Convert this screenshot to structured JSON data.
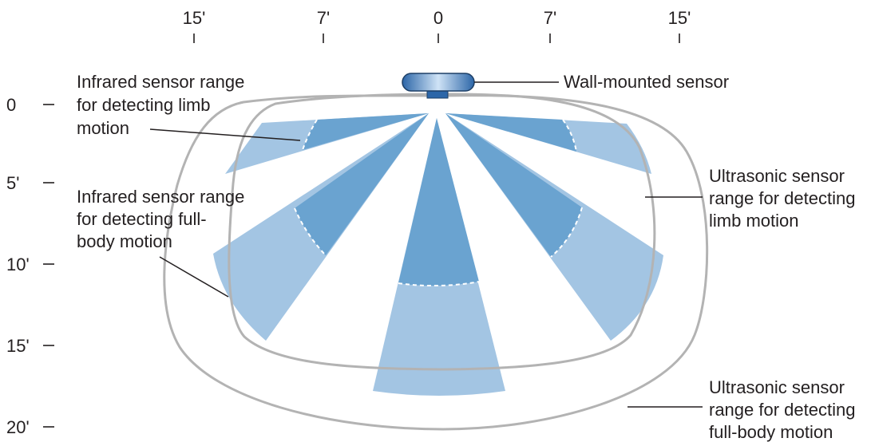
{
  "top_axis": [
    "15'",
    "7'",
    "0",
    "7'",
    "15'"
  ],
  "left_axis": [
    "0",
    "5'",
    "10'",
    "15'",
    "20'"
  ],
  "labels": {
    "wall_sensor": "Wall-mounted sensor",
    "ir_limb": [
      "Infrared sensor range",
      "for detecting limb",
      "motion"
    ],
    "ir_body": [
      "Infrared sensor range",
      "for detecting full-",
      "body motion"
    ],
    "us_limb": [
      "Ultrasonic sensor",
      "range for detecting",
      "limb motion"
    ],
    "us_body": [
      "Ultrasonic sensor",
      "range for detecting",
      "full-body motion"
    ]
  },
  "colors": {
    "beam_light": "#a3c5e3",
    "beam_dark": "#6aa3d0",
    "outline": "#b3b3b3",
    "text": "#231f20"
  }
}
